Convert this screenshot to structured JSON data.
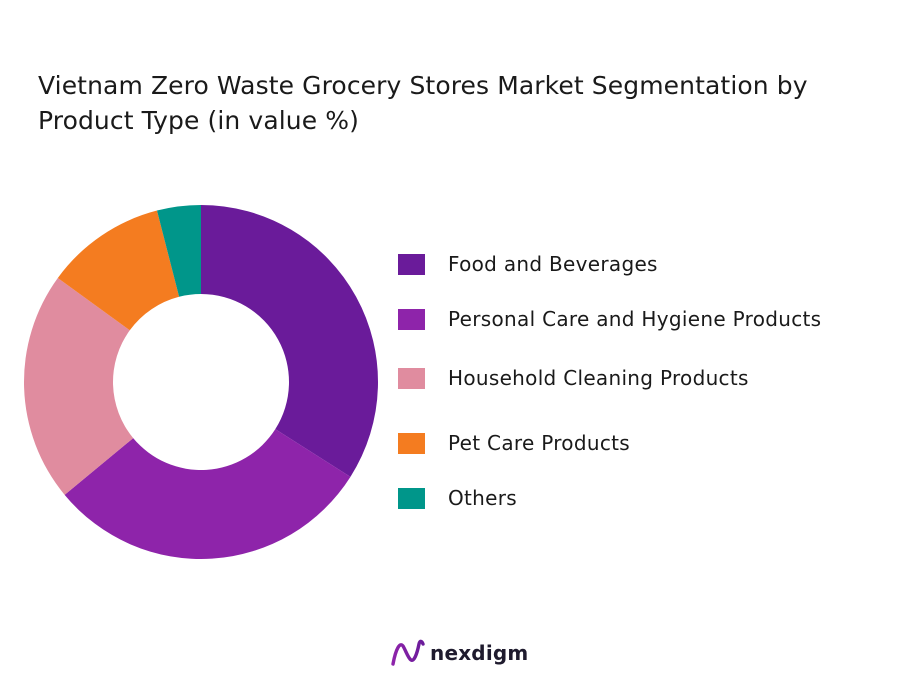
{
  "page": {
    "title": "Vietnam Zero Waste Grocery Stores Market Segmentation by Product Type  (in value %)",
    "brand": "nexdigm"
  },
  "chart_data": {
    "type": "pie",
    "variant": "donut",
    "title": "Vietnam Zero Waste Grocery Stores Market Segmentation by Product Type  (in value %)",
    "legend_position": "right",
    "categories": [
      "Food and Beverages",
      "Personal Care and Hygiene Products",
      "Household Cleaning Products",
      "Pet Care Products",
      "Others"
    ],
    "values": [
      34,
      30,
      21,
      11,
      4
    ],
    "colors": [
      "#6a1b9a",
      "#8e24aa",
      "#e08c9f",
      "#f47c20",
      "#00968a"
    ]
  }
}
